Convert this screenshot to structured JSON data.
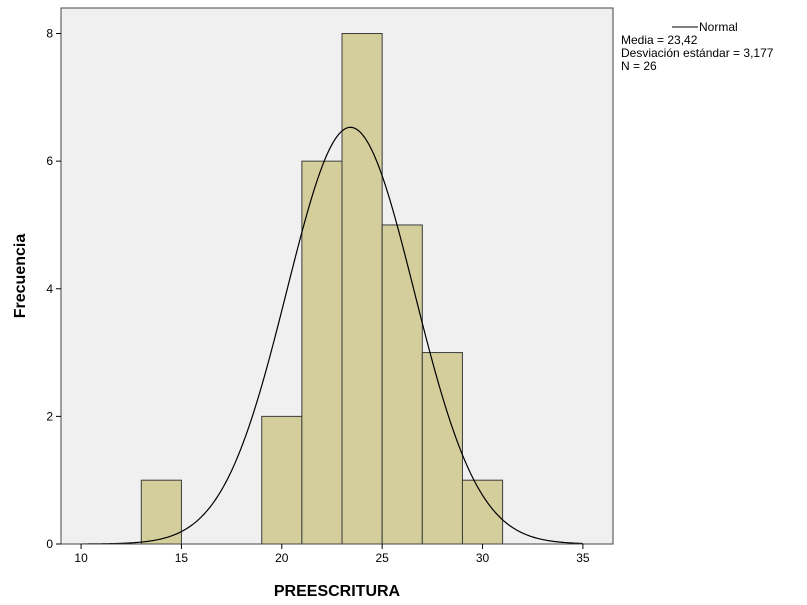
{
  "chart_data": {
    "type": "bar",
    "subtype": "histogram",
    "xlabel": "PREESCRITURA",
    "ylabel": "Frecuencia",
    "xlim": [
      9,
      36.5
    ],
    "ylim": [
      0,
      8.4
    ],
    "x_ticks": [
      10,
      15,
      20,
      25,
      30,
      35
    ],
    "y_ticks": [
      0,
      2,
      4,
      6,
      8
    ],
    "bins": [
      {
        "x0": 13,
        "x1": 15,
        "count": 1
      },
      {
        "x0": 19,
        "x1": 21,
        "count": 2
      },
      {
        "x0": 21,
        "x1": 23,
        "count": 6
      },
      {
        "x0": 23,
        "x1": 25,
        "count": 8
      },
      {
        "x0": 25,
        "x1": 27,
        "count": 5
      },
      {
        "x0": 27,
        "x1": 29,
        "count": 3
      },
      {
        "x0": 29,
        "x1": 31,
        "count": 1
      }
    ],
    "normal_curve": {
      "mean": 23.42,
      "sd": 3.177,
      "n": 26,
      "bin_width": 2
    },
    "grid": false,
    "legend_position": "top-right",
    "legend": {
      "line_label": "Normal",
      "stats": [
        "Media = 23,42",
        "Desviación estándar = 3,177",
        "N = 26"
      ]
    },
    "colors": {
      "plot_background": "#f0f0f0",
      "bar_fill": "#d3ce9b",
      "bar_stroke": "#3c3c3c",
      "curve": "#000000"
    }
  }
}
